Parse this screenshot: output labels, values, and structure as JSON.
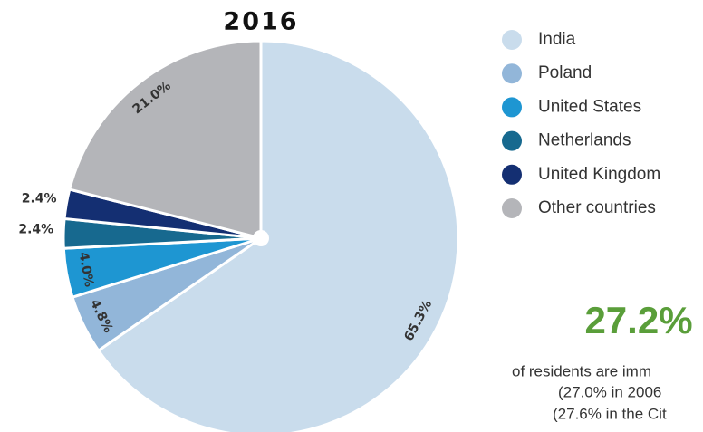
{
  "chart_data": {
    "type": "pie",
    "title": "2016",
    "categories": [
      "India",
      "Poland",
      "United States",
      "Netherlands",
      "United Kingdom",
      "Other countries"
    ],
    "values": [
      65.3,
      4.8,
      4.0,
      2.4,
      2.4,
      21.0
    ],
    "value_labels": [
      "65.3%",
      "4.8%",
      "4.0%",
      "2.4%",
      "2.4%",
      "21.0%"
    ],
    "colors": [
      "#c9dcec",
      "#92b6d9",
      "#1e96d2",
      "#17698f",
      "#142f72",
      "#b4b5b9"
    ],
    "annotation": {
      "headline": "27.2%",
      "lines": [
        "of residents are imm",
        "(27.0% in 2006",
        "(27.6% in the Cit"
      ]
    }
  }
}
